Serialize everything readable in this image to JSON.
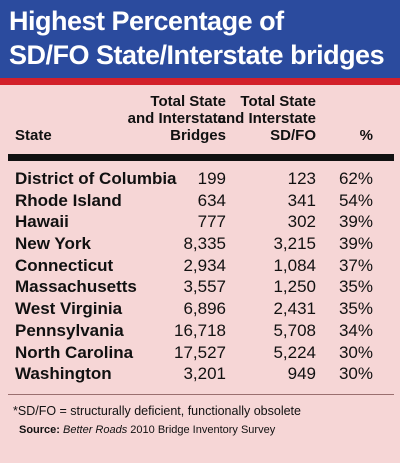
{
  "title_lines": [
    "Highest Percentage of",
    "SD/FO State/Interstate bridges"
  ],
  "chart_data": {
    "type": "table",
    "columns": [
      "State",
      "Total State\nand Interstate\nBridges",
      "Total State\nand Interstate\nSD/FO",
      "%"
    ],
    "rows": [
      {
        "state": "District of Columbia",
        "bridges": "199",
        "sdfo": "123",
        "pct": "62%"
      },
      {
        "state": "Rhode Island",
        "bridges": "634",
        "sdfo": "341",
        "pct": "54%"
      },
      {
        "state": "Hawaii",
        "bridges": "777",
        "sdfo": "302",
        "pct": "39%"
      },
      {
        "state": "New York",
        "bridges": "8,335",
        "sdfo": "3,215",
        "pct": "39%"
      },
      {
        "state": "Connecticut",
        "bridges": "2,934",
        "sdfo": "1,084",
        "pct": "37%"
      },
      {
        "state": "Massachusetts",
        "bridges": "3,557",
        "sdfo": "1,250",
        "pct": "35%"
      },
      {
        "state": "West Virginia",
        "bridges": "6,896",
        "sdfo": "2,431",
        "pct": "35%"
      },
      {
        "state": "Pennsylvania",
        "bridges": "16,718",
        "sdfo": "5,708",
        "pct": "34%"
      },
      {
        "state": "North Carolina",
        "bridges": "17,527",
        "sdfo": "5,224",
        "pct": "30%"
      },
      {
        "state": "Washington",
        "bridges": "3,201",
        "sdfo": "949",
        "pct": "30%"
      }
    ]
  },
  "footnote": "*SD/FO = structurally deficient, functionally obsolete",
  "source": {
    "label": "Source:",
    "publication": "Better Roads",
    "rest": " 2010 Bridge Inventory Survey"
  },
  "colors": {
    "header_bg": "#2b4b9e",
    "accent_red": "#d3202a",
    "panel_bg": "#f6d6d6"
  }
}
